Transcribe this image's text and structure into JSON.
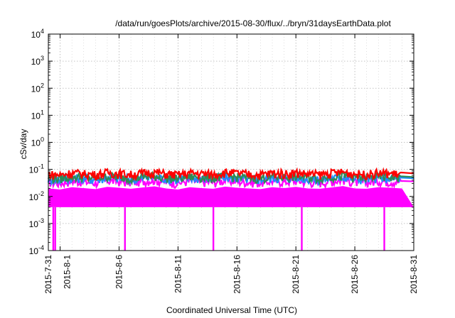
{
  "chart_data": {
    "type": "line",
    "title": "/data/run/goesPlots/archive/2015-08-30/flux/../bryn/31daysEarthData.plot",
    "xlabel": "Coordinated Universal Time (UTC)",
    "ylabel": "cSv/day",
    "yscale": "log",
    "ylim": [
      0.0001,
      10000
    ],
    "xlim": [
      "2015-07-31",
      "2015-08-31"
    ],
    "grid": true,
    "y_ticks": [
      {
        "base": "10",
        "exp": "-4",
        "value": 0.0001
      },
      {
        "base": "10",
        "exp": "-3",
        "value": 0.001
      },
      {
        "base": "10",
        "exp": "-2",
        "value": 0.01
      },
      {
        "base": "10",
        "exp": "-1",
        "value": 0.1
      },
      {
        "base": "10",
        "exp": "0",
        "value": 1
      },
      {
        "base": "10",
        "exp": "1",
        "value": 10
      },
      {
        "base": "10",
        "exp": "2",
        "value": 100
      },
      {
        "base": "10",
        "exp": "3",
        "value": 1000
      },
      {
        "base": "10",
        "exp": "4",
        "value": 10000
      }
    ],
    "x_ticks": [
      {
        "label": "2015-7-31",
        "value": "2015-07-31"
      },
      {
        "label": "2015-8-1",
        "value": "2015-08-01"
      },
      {
        "label": "2015-8-6",
        "value": "2015-08-06"
      },
      {
        "label": "2015-8-11",
        "value": "2015-08-11"
      },
      {
        "label": "2015-8-16",
        "value": "2015-08-16"
      },
      {
        "label": "2015-8-21",
        "value": "2015-08-21"
      },
      {
        "label": "2015-8-26",
        "value": "2015-08-26"
      },
      {
        "label": "2015-8-31",
        "value": "2015-08-31"
      }
    ],
    "series": [
      {
        "color": "#ff0000",
        "values": [
          0.071,
          0.066,
          0.079,
          0.073,
          0.068,
          0.081,
          0.075,
          0.069,
          0.077,
          0.083,
          0.072,
          0.067,
          0.078,
          0.074,
          0.07,
          0.082,
          0.076,
          0.071,
          0.068,
          0.079,
          0.074,
          0.08,
          0.072,
          0.069,
          0.077,
          0.084,
          0.073,
          0.07,
          0.078,
          0.075,
          0.071
        ]
      },
      {
        "color": "#2e8b57",
        "values": [
          0.052,
          0.049,
          0.057,
          0.054,
          0.05,
          0.058,
          0.055,
          0.051,
          0.056,
          0.06,
          0.053,
          0.049,
          0.057,
          0.054,
          0.051,
          0.059,
          0.055,
          0.052,
          0.05,
          0.057,
          0.054,
          0.058,
          0.053,
          0.051,
          0.056,
          0.061,
          0.053,
          0.051,
          0.057,
          0.055,
          0.052
        ]
      },
      {
        "color": "#1e90ff",
        "values": [
          0.047,
          0.044,
          0.052,
          0.049,
          0.045,
          0.053,
          0.05,
          0.046,
          0.051,
          0.055,
          0.048,
          0.044,
          0.052,
          0.049,
          0.046,
          0.054,
          0.05,
          0.047,
          0.045,
          0.052,
          0.049,
          0.053,
          0.048,
          0.046,
          0.051,
          0.056,
          0.048,
          0.046,
          0.052,
          0.05,
          0.047
        ]
      },
      {
        "color": "#ff00ff",
        "values": [
          0.036,
          0.033,
          0.04,
          0.037,
          0.034,
          0.041,
          0.038,
          0.035,
          0.039,
          0.043,
          0.036,
          0.033,
          0.04,
          0.037,
          0.035,
          0.042,
          0.038,
          0.036,
          0.034,
          0.04,
          0.037,
          0.041,
          0.036,
          0.035,
          0.039,
          0.044,
          0.036,
          0.035,
          0.04,
          0.038,
          0.036
        ]
      }
    ],
    "x_series": [
      "2015-07-31",
      "2015-08-01",
      "2015-08-02",
      "2015-08-03",
      "2015-08-04",
      "2015-08-05",
      "2015-08-06",
      "2015-08-07",
      "2015-08-08",
      "2015-08-09",
      "2015-08-10",
      "2015-08-11",
      "2015-08-12",
      "2015-08-13",
      "2015-08-14",
      "2015-08-15",
      "2015-08-16",
      "2015-08-17",
      "2015-08-18",
      "2015-08-19",
      "2015-08-20",
      "2015-08-21",
      "2015-08-22",
      "2015-08-23",
      "2015-08-24",
      "2015-08-25",
      "2015-08-26",
      "2015-08-27",
      "2015-08-28",
      "2015-08-29",
      "2015-08-30"
    ],
    "low_band": {
      "color": "#ff00ff",
      "floor": 0.004
    },
    "dropouts": [
      "2015-07-31T10:00",
      "2015-07-31T14:00",
      "2015-08-06T12:00",
      "2015-08-14T00:00",
      "2015-08-21T12:00",
      "2015-08-28T12:00"
    ]
  }
}
